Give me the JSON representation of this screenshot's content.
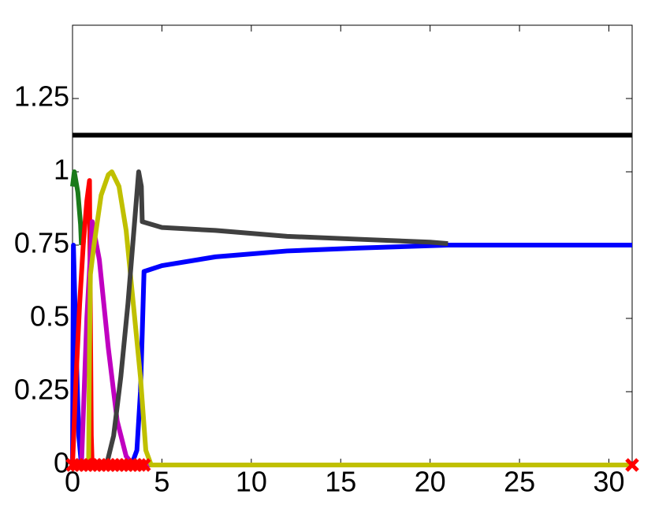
{
  "chart_data": {
    "type": "line",
    "xlim": [
      0,
      31.3
    ],
    "ylim": [
      0,
      1.5
    ],
    "xticks": [
      0,
      5,
      10,
      15,
      20,
      25,
      30
    ],
    "yticks": [
      0,
      0.25,
      0.5,
      0.75,
      1,
      1.25
    ],
    "series": [
      {
        "color": "#000000",
        "x": [
          0,
          31.3
        ],
        "values": [
          1.125,
          1.125
        ]
      },
      {
        "color": "#1a7a1a",
        "x": [
          0,
          0.1,
          0.3,
          0.45,
          0.5
        ],
        "values": [
          0.95,
          1,
          0.93,
          0.82,
          0.75
        ]
      },
      {
        "color": "#0000ff",
        "x": [
          0,
          0.05,
          0.2,
          0.35,
          0.5,
          3.3,
          3.6,
          3.8,
          3.9,
          4.0,
          5,
          8,
          12,
          16,
          21,
          31.3
        ],
        "values": [
          0,
          0.75,
          0.4,
          0.1,
          0,
          0,
          0.05,
          0.25,
          0.45,
          0.66,
          0.68,
          0.71,
          0.73,
          0.74,
          0.75,
          0.75
        ]
      },
      {
        "color": "#ff0000",
        "x": [
          0,
          0.2,
          0.4,
          0.6,
          0.8,
          0.95,
          1.0,
          1.05,
          1.1
        ],
        "values": [
          0,
          0.3,
          0.55,
          0.75,
          0.9,
          0.97,
          0.5,
          0.1,
          0
        ]
      },
      {
        "color": "#c000c0",
        "x": [
          0.5,
          0.8,
          1.1,
          1.5,
          2,
          2.5,
          3,
          3.4,
          7.5
        ],
        "values": [
          0,
          0.5,
          0.83,
          0.7,
          0.4,
          0.15,
          0.03,
          0,
          0
        ]
      },
      {
        "color": "#c0c000",
        "x": [
          0.9,
          0.95,
          1.0,
          1.2,
          1.6,
          2,
          2.2,
          2.6,
          3,
          3.4,
          3.8,
          4.1,
          4.4,
          31.3
        ],
        "values": [
          0,
          0.4,
          0.65,
          0.75,
          0.92,
          0.99,
          1,
          0.95,
          0.8,
          0.55,
          0.3,
          0.05,
          0,
          0
        ]
      },
      {
        "color": "#404040",
        "x": [
          1.9,
          2.3,
          2.7,
          3.1,
          3.5,
          3.7,
          3.85,
          3.9,
          5,
          8,
          12,
          16,
          20,
          21
        ],
        "values": [
          0,
          0.1,
          0.3,
          0.55,
          0.85,
          1,
          0.95,
          0.83,
          0.81,
          0.8,
          0.78,
          0.77,
          0.76,
          0.755
        ]
      },
      {
        "color": "#ff0000",
        "marker": "x",
        "x": [
          0,
          0.25,
          0.5,
          0.75,
          1,
          1.25,
          1.5,
          1.75,
          2,
          2.25,
          2.5,
          2.75,
          3,
          3.25,
          3.5,
          3.75,
          4,
          31.3
        ],
        "values": [
          0,
          0,
          0,
          0,
          0,
          0,
          0,
          0,
          0,
          0,
          0,
          0,
          0,
          0,
          0,
          0,
          0,
          0
        ]
      }
    ]
  }
}
